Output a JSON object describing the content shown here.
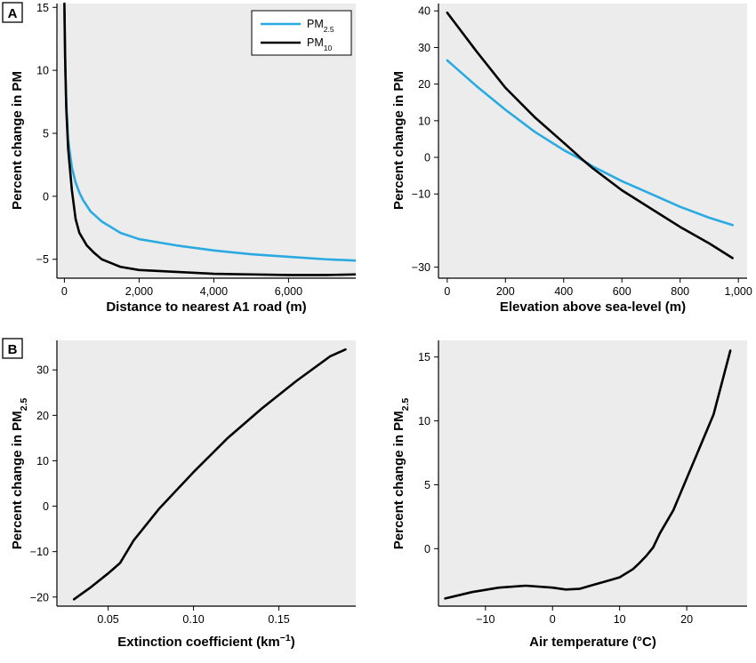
{
  "colors": {
    "pm25": "#29abe2",
    "pm10": "#000000",
    "plot_bg": "#ececec"
  },
  "panel_labels": [
    "A",
    "B"
  ],
  "legend": [
    {
      "base": "PM",
      "sub": "2.5",
      "color": "#29abe2"
    },
    {
      "base": "PM",
      "sub": "10",
      "color": "#000000"
    }
  ],
  "chart_data": [
    {
      "type": "line",
      "panel": "A",
      "xlabel": "Distance to nearest A1 road (m)",
      "ylabel": "Percent change in PM",
      "xlim": [
        -200,
        7800
      ],
      "ylim": [
        -6.5,
        15.3
      ],
      "xticks": [
        {
          "v": 0,
          "l": "0"
        },
        {
          "v": 2000,
          "l": "2,000"
        },
        {
          "v": 4000,
          "l": "4,000"
        },
        {
          "v": 6000,
          "l": "6,000"
        }
      ],
      "yticks": [
        {
          "v": -5,
          "l": "−5"
        },
        {
          "v": 0,
          "l": "0"
        },
        {
          "v": 5,
          "l": "5"
        },
        {
          "v": 10,
          "l": "10"
        },
        {
          "v": 15,
          "l": "15"
        }
      ],
      "series": [
        {
          "name": "PM2.5",
          "color": "#29abe2",
          "x": [
            0,
            25,
            50,
            100,
            200,
            300,
            400,
            500,
            700,
            1000,
            1500,
            2000,
            3000,
            4000,
            5000,
            6000,
            7000,
            7800
          ],
          "y": [
            14.8,
            10.0,
            7.5,
            4.5,
            2.3,
            1.1,
            0.3,
            -0.3,
            -1.2,
            -2.0,
            -2.9,
            -3.4,
            -3.9,
            -4.3,
            -4.6,
            -4.8,
            -5.0,
            -5.1
          ]
        },
        {
          "name": "PM10",
          "color": "#000000",
          "x": [
            0,
            20,
            50,
            100,
            200,
            300,
            400,
            600,
            800,
            1000,
            1500,
            2000,
            3000,
            4000,
            5000,
            6000,
            7000,
            7800
          ],
          "y": [
            15.3,
            11.0,
            7.0,
            3.8,
            0.5,
            -1.8,
            -2.9,
            -3.9,
            -4.5,
            -5.0,
            -5.6,
            -5.85,
            -6.0,
            -6.15,
            -6.2,
            -6.25,
            -6.25,
            -6.2
          ]
        }
      ]
    },
    {
      "type": "line",
      "panel": "A-right",
      "xlabel": "Elevation above sea-level (m)",
      "ylabel": "Percent change in PM",
      "xlim": [
        -30,
        1030
      ],
      "ylim": [
        -33,
        42
      ],
      "xticks": [
        {
          "v": 0,
          "l": "0"
        },
        {
          "v": 200,
          "l": "200"
        },
        {
          "v": 400,
          "l": "400"
        },
        {
          "v": 600,
          "l": "600"
        },
        {
          "v": 800,
          "l": "800"
        },
        {
          "v": 1000,
          "l": "1,000"
        }
      ],
      "yticks": [
        {
          "v": -30,
          "l": "−30"
        },
        {
          "v": -10,
          "l": "−10"
        },
        {
          "v": 0,
          "l": "0"
        },
        {
          "v": 10,
          "l": "10"
        },
        {
          "v": 20,
          "l": "20"
        },
        {
          "v": 30,
          "l": "30"
        },
        {
          "v": 40,
          "l": "40"
        }
      ],
      "series": [
        {
          "name": "PM2.5",
          "color": "#29abe2",
          "x": [
            0,
            100,
            200,
            300,
            400,
            470,
            500,
            600,
            700,
            800,
            900,
            980
          ],
          "y": [
            26.5,
            19.5,
            13.0,
            7.0,
            2.0,
            -1.0,
            -2.5,
            -6.5,
            -10.0,
            -13.5,
            -16.5,
            -18.5
          ]
        },
        {
          "name": "PM10",
          "color": "#000000",
          "x": [
            0,
            100,
            200,
            300,
            400,
            470,
            500,
            600,
            700,
            800,
            900,
            980
          ],
          "y": [
            39.5,
            29.0,
            19.0,
            11.0,
            4.0,
            -1.0,
            -3.0,
            -9.0,
            -14.0,
            -19.0,
            -23.5,
            -27.5
          ]
        }
      ]
    },
    {
      "type": "line",
      "panel": "B",
      "xlabel": "Extinction coefficient (km−1)",
      "ylabel": "Percent change in PM2.5",
      "xlim": [
        0.02,
        0.195
      ],
      "ylim": [
        -22,
        36.5
      ],
      "xticks": [
        {
          "v": 0.05,
          "l": "0.05"
        },
        {
          "v": 0.1,
          "l": "0.10"
        },
        {
          "v": 0.15,
          "l": "0.15"
        }
      ],
      "yticks": [
        {
          "v": -20,
          "l": "−20"
        },
        {
          "v": -10,
          "l": "−10"
        },
        {
          "v": 0,
          "l": "0"
        },
        {
          "v": 10,
          "l": "10"
        },
        {
          "v": 20,
          "l": "20"
        },
        {
          "v": 30,
          "l": "30"
        }
      ],
      "series": [
        {
          "name": "PM2.5",
          "color": "#000000",
          "x": [
            0.03,
            0.04,
            0.05,
            0.057,
            0.065,
            0.08,
            0.09,
            0.1,
            0.12,
            0.14,
            0.16,
            0.18,
            0.189
          ],
          "y": [
            -20.5,
            -17.8,
            -14.8,
            -12.5,
            -7.5,
            -0.5,
            3.5,
            7.5,
            15.0,
            21.5,
            27.5,
            33.0,
            34.5
          ]
        }
      ]
    },
    {
      "type": "line",
      "panel": "B-right",
      "xlabel": "Air temperature (°C)",
      "ylabel": "Percent change in PM2.5",
      "xlim": [
        -17,
        29
      ],
      "ylim": [
        -4.5,
        16.3
      ],
      "xticks": [
        {
          "v": -10,
          "l": "−10"
        },
        {
          "v": 0,
          "l": "0"
        },
        {
          "v": 10,
          "l": "10"
        },
        {
          "v": 20,
          "l": "20"
        }
      ],
      "yticks": [
        {
          "v": 0,
          "l": "0"
        },
        {
          "v": 5,
          "l": "5"
        },
        {
          "v": 10,
          "l": "10"
        },
        {
          "v": 15,
          "l": "15"
        }
      ],
      "series": [
        {
          "name": "PM2.5",
          "color": "#000000",
          "x": [
            -16,
            -12,
            -8,
            -4,
            0,
            2,
            4,
            6,
            8,
            10,
            12,
            13,
            14,
            15,
            16,
            18,
            20,
            22,
            24,
            26.5
          ],
          "y": [
            -3.9,
            -3.4,
            -3.05,
            -2.9,
            -3.05,
            -3.2,
            -3.15,
            -2.85,
            -2.55,
            -2.25,
            -1.6,
            -1.1,
            -0.55,
            0.1,
            1.2,
            3.0,
            5.5,
            8.0,
            10.5,
            15.5
          ]
        }
      ]
    }
  ]
}
